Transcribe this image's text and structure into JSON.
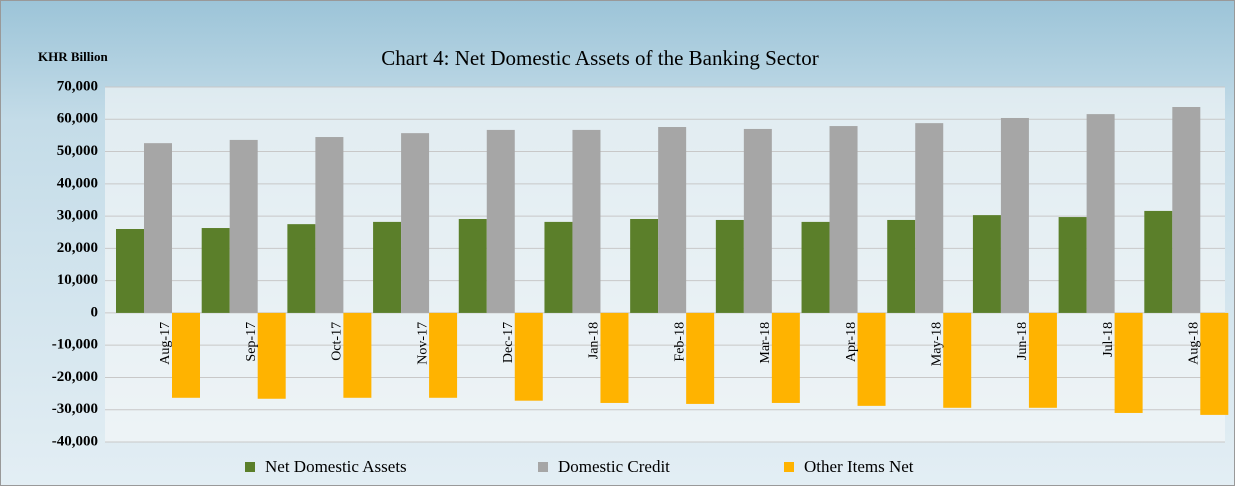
{
  "chart_data": {
    "type": "bar",
    "title": "Chart 4: Net Domestic Assets of the Banking Sector",
    "y_label": "KHR Billion",
    "categories": [
      "Aug-17",
      "Sep-17",
      "Oct-17",
      "Nov-17",
      "Dec-17",
      "Jan-18",
      "Feb-18",
      "Mar-18",
      "Apr-18",
      "May-18",
      "Jun-18",
      "Jul-18",
      "Aug-18"
    ],
    "series": [
      {
        "name": "Net Domestic Assets",
        "color": "#5b7f2a",
        "values": [
          26000,
          26300,
          27500,
          28200,
          29100,
          28200,
          29100,
          28800,
          28200,
          28800,
          30300,
          29700,
          31600
        ]
      },
      {
        "name": "Domestic Credit",
        "color": "#a6a6a6",
        "values": [
          52600,
          53600,
          54500,
          55700,
          56700,
          56700,
          57600,
          57000,
          57900,
          58800,
          60400,
          61600,
          63800
        ]
      },
      {
        "name": "Other Items Net",
        "color": "#ffb300",
        "values": [
          -26300,
          -26600,
          -26300,
          -26300,
          -27200,
          -27900,
          -28200,
          -27900,
          -28800,
          -29400,
          -29400,
          -31000,
          -31600
        ]
      }
    ],
    "ylim": [
      -40000,
      70000
    ],
    "yticks": [
      {
        "value": -40000,
        "label": "-40,000"
      },
      {
        "value": -30000,
        "label": "-30,000"
      },
      {
        "value": -20000,
        "label": "-20,000"
      },
      {
        "value": -10000,
        "label": "-10,000"
      },
      0,
      {
        "value": 10000,
        "label": "10,000"
      },
      {
        "value": 20000,
        "label": "20,000"
      },
      {
        "value": 30000,
        "label": "30,000"
      },
      {
        "value": 40000,
        "label": "40,000"
      },
      {
        "value": 50000,
        "label": "50,000"
      },
      {
        "value": 60000,
        "label": "60,000"
      },
      {
        "value": 70000,
        "label": "70,000"
      }
    ],
    "grid": true,
    "legend": "bottom"
  }
}
